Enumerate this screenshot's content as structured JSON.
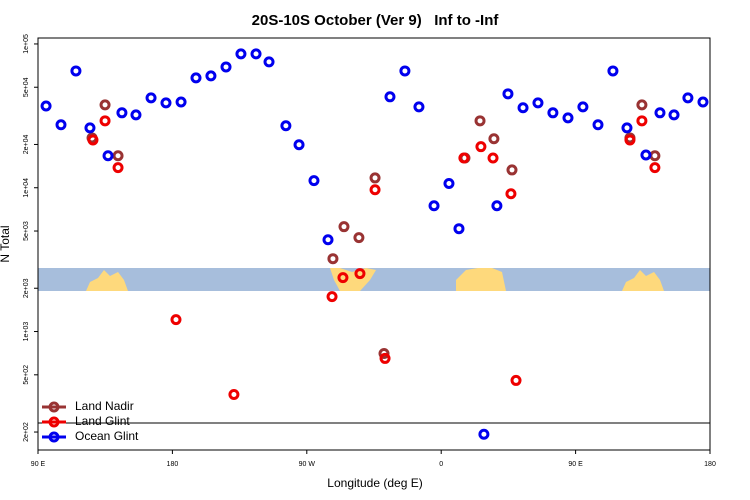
{
  "chart_data": {
    "type": "scatter",
    "title": "20S-10S October (Ver 9)   Inf to -Inf",
    "x_label": "Longitude (deg E)",
    "y_label": "N Total",
    "xlim": [
      90,
      540
    ],
    "xticks": [
      {
        "value": 90,
        "label": "90 E"
      },
      {
        "value": 180,
        "label": "180"
      },
      {
        "value": 270,
        "label": "90 W"
      },
      {
        "value": 360,
        "label": "0"
      },
      {
        "value": 450,
        "label": "90 E"
      },
      {
        "value": 540,
        "label": "180"
      }
    ],
    "ylim": [
      150,
      110000
    ],
    "log_y": true,
    "yticks": [
      {
        "value": 100000,
        "label": "1e+05"
      },
      {
        "value": 50000,
        "label": "5e+04"
      },
      {
        "value": 20000,
        "label": "2e+04"
      },
      {
        "value": 10000,
        "label": "1e+04"
      },
      {
        "value": 5000,
        "label": "5e+03"
      },
      {
        "value": 2000,
        "label": "2e+03"
      },
      {
        "value": 1000,
        "label": "1e+03"
      },
      {
        "value": 500,
        "label": "5e+02"
      },
      {
        "value": 200,
        "label": "2e+02"
      }
    ],
    "legend_position": "bottom-left",
    "series": [
      {
        "name": "Land Nadir",
        "color": "#993333",
        "x": [
          126.2,
          134.9,
          143.6,
          287.5,
          294.9,
          304.9,
          315.7,
          321.7,
          375.9,
          386,
          395.3,
          407.4,
          486.4,
          494.4,
          503.1
        ],
        "values": [
          22200,
          37700,
          16700,
          3210,
          5360,
          4500,
          11700,
          703,
          16100,
          29200,
          21900,
          13300,
          22200,
          37700,
          16700
        ]
      },
      {
        "name": "Land Glint",
        "color": "#ee0000",
        "x": [
          126.8,
          134.9,
          143.6,
          182.4,
          221.2,
          286.9,
          294.2,
          305.6,
          315.7,
          322.4,
          375.2,
          386.6,
          394.7,
          406.7,
          410.1,
          486.4,
          494.4,
          503.1
        ],
        "values": [
          21500,
          29200,
          13800,
          1210,
          365,
          1750,
          2370,
          2530,
          9690,
          650,
          16100,
          19300,
          16100,
          9080,
          457,
          21500,
          29200,
          13800
        ]
      },
      {
        "name": "Ocean Glint",
        "color": "#0000ee",
        "x": [
          95.4,
          105.4,
          115.4,
          124.8,
          136.9,
          146.2,
          155.6,
          165.7,
          175.7,
          185.8,
          195.8,
          205.8,
          215.9,
          225.9,
          236,
          244.7,
          256,
          264.8,
          274.8,
          284.2,
          325.7,
          335.7,
          345.1,
          355.2,
          365.2,
          371.9,
          388.6,
          397.3,
          404.7,
          414.8,
          424.8,
          434.8,
          444.9,
          454.9,
          465,
          475,
          484.4,
          497.1,
          506.5,
          515.9,
          525.2,
          535.3
        ],
        "values": [
          37000,
          27400,
          64900,
          26100,
          16700,
          33200,
          32100,
          42200,
          38900,
          39500,
          58100,
          60000,
          69200,
          85300,
          85300,
          75000,
          27000,
          19900,
          11200,
          4350,
          42900,
          64900,
          36500,
          7500,
          10700,
          5190,
          193,
          7500,
          45000,
          36000,
          38900,
          33200,
          30600,
          36500,
          27400,
          64900,
          26100,
          16900,
          33200,
          32100,
          42200,
          39500
        ]
      }
    ]
  }
}
